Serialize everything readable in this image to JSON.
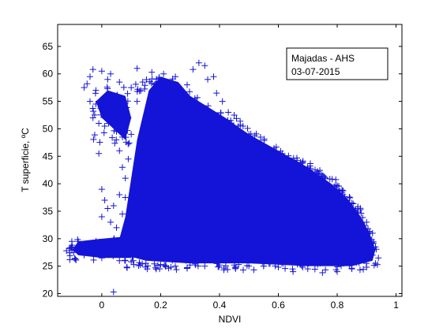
{
  "chart_data": {
    "type": "scatter",
    "marker": "+",
    "marker_color": "#1414d8",
    "xlabel": "NDVI",
    "ylabel": "T superficie, ºC",
    "xlim": [
      -0.15,
      1.02
    ],
    "ylim": [
      19.5,
      69
    ],
    "xticks": [
      0,
      0.2,
      0.4,
      0.6,
      0.8,
      1
    ],
    "xtick_labels": [
      "0",
      "0.2",
      "0.4",
      "0.6",
      "0.8",
      "1"
    ],
    "yticks": [
      20,
      25,
      30,
      35,
      40,
      45,
      50,
      55,
      60,
      65
    ],
    "ytick_labels": [
      "20",
      "25",
      "30",
      "35",
      "40",
      "45",
      "50",
      "55",
      "60",
      "65"
    ],
    "grid": false,
    "annotation": {
      "lines": [
        "Majadas - AHS",
        "03-07-2015"
      ],
      "placement": "top-right"
    },
    "series": [
      {
        "points": [
          [
            -0.06,
            57.5
          ],
          [
            -0.05,
            58.2
          ],
          [
            -0.04,
            59.5
          ],
          [
            -0.03,
            60.8
          ],
          [
            -0.02,
            57.0
          ],
          [
            0.0,
            60.5
          ],
          [
            0.02,
            59.0
          ],
          [
            0.03,
            60.0
          ],
          [
            0.06,
            58.5
          ],
          [
            0.1,
            57.5
          ],
          [
            -0.04,
            55.0
          ],
          [
            -0.03,
            52.0
          ],
          [
            -0.02,
            54.5
          ],
          [
            -0.01,
            51.0
          ],
          [
            0.0,
            53.5
          ],
          [
            0.01,
            50.5
          ],
          [
            0.02,
            52.5
          ],
          [
            0.03,
            55.5
          ],
          [
            0.04,
            53.0
          ],
          [
            0.05,
            49.5
          ],
          [
            0.06,
            51.5
          ],
          [
            0.07,
            48.5
          ],
          [
            0.08,
            50.0
          ],
          [
            0.09,
            52.0
          ],
          [
            0.1,
            49.0
          ],
          [
            -0.01,
            45.5
          ],
          [
            0.06,
            46.0
          ],
          [
            0.07,
            43.0
          ],
          [
            0.08,
            41.0
          ],
          [
            0.09,
            44.5
          ],
          [
            0.0,
            39.0
          ],
          [
            0.01,
            37.0
          ],
          [
            0.02,
            35.5
          ],
          [
            0.0,
            34.0
          ],
          [
            0.03,
            33.0
          ],
          [
            0.04,
            36.0
          ],
          [
            0.05,
            32.0
          ],
          [
            0.06,
            38.0
          ],
          [
            0.07,
            34.5
          ],
          [
            0.08,
            37.5
          ],
          [
            -0.12,
            27.8
          ],
          [
            -0.1,
            28.5
          ],
          [
            -0.08,
            29.5
          ],
          [
            -0.06,
            27.0
          ],
          [
            -0.04,
            28.2
          ],
          [
            -0.02,
            29.0
          ],
          [
            0.0,
            26.5
          ],
          [
            0.02,
            27.5
          ],
          [
            0.04,
            29.8
          ],
          [
            0.06,
            26.0
          ],
          [
            -0.09,
            26.3
          ],
          [
            0.04,
            20.3
          ],
          [
            0.12,
            61.0
          ],
          [
            0.17,
            60.3
          ],
          [
            0.21,
            60.0
          ],
          [
            0.25,
            59.5
          ],
          [
            0.29,
            58.0
          ],
          [
            0.31,
            60.8
          ],
          [
            0.33,
            62.0
          ],
          [
            0.35,
            61.5
          ],
          [
            0.36,
            59.0
          ],
          [
            0.38,
            59.5
          ],
          [
            0.39,
            56.5
          ],
          [
            0.41,
            55.0
          ],
          [
            0.43,
            53.0
          ],
          [
            0.45,
            52.5
          ],
          [
            0.48,
            50.5
          ],
          [
            0.5,
            49.0
          ],
          [
            0.53,
            47.5
          ],
          [
            0.56,
            46.5
          ],
          [
            0.6,
            45.0
          ],
          [
            0.63,
            44.0
          ],
          [
            0.66,
            43.5
          ],
          [
            0.7,
            43.0
          ],
          [
            0.73,
            42.0
          ],
          [
            0.76,
            41.0
          ],
          [
            0.79,
            39.5
          ],
          [
            0.82,
            38.0
          ],
          [
            0.85,
            36.5
          ],
          [
            0.87,
            35.5
          ],
          [
            0.9,
            33.0
          ],
          [
            0.92,
            31.0
          ],
          [
            0.93,
            28.5
          ],
          [
            0.94,
            26.5
          ],
          [
            0.93,
            25.5
          ],
          [
            0.9,
            24.8
          ],
          [
            0.85,
            24.5
          ],
          [
            0.8,
            24.0
          ],
          [
            0.75,
            23.8
          ],
          [
            0.7,
            24.5
          ],
          [
            0.65,
            24.0
          ],
          [
            0.6,
            24.8
          ],
          [
            0.55,
            25.0
          ],
          [
            0.5,
            25.0
          ],
          [
            0.45,
            25.2
          ],
          [
            0.4,
            25.2
          ],
          [
            0.35,
            25.0
          ],
          [
            0.3,
            25.2
          ],
          [
            0.25,
            25.0
          ],
          [
            0.2,
            25.3
          ],
          [
            0.15,
            25.5
          ],
          [
            0.1,
            25.8
          ],
          [
            0.08,
            26.0
          ],
          [
            0.12,
            55.0
          ],
          [
            0.14,
            50.0
          ],
          [
            0.16,
            45.0
          ],
          [
            0.18,
            42.0
          ],
          [
            0.2,
            38.0
          ],
          [
            0.22,
            35.0
          ],
          [
            0.25,
            33.0
          ],
          [
            0.28,
            30.0
          ],
          [
            0.3,
            28.0
          ],
          [
            0.35,
            27.0
          ],
          [
            0.4,
            28.5
          ],
          [
            0.45,
            30.0
          ],
          [
            0.5,
            31.0
          ],
          [
            0.55,
            32.0
          ],
          [
            0.6,
            30.0
          ],
          [
            0.65,
            29.0
          ],
          [
            0.7,
            30.5
          ],
          [
            0.75,
            28.5
          ],
          [
            0.8,
            29.5
          ],
          [
            0.85,
            28.0
          ],
          [
            0.88,
            27.0
          ],
          [
            0.2,
            57.0
          ],
          [
            0.22,
            55.0
          ],
          [
            0.24,
            53.0
          ],
          [
            0.26,
            50.0
          ],
          [
            0.28,
            48.0
          ],
          [
            0.3,
            46.0
          ],
          [
            0.32,
            44.0
          ],
          [
            0.34,
            42.0
          ],
          [
            0.36,
            40.0
          ],
          [
            0.38,
            38.0
          ],
          [
            0.4,
            36.0
          ],
          [
            0.42,
            34.0
          ],
          [
            0.44,
            32.5
          ],
          [
            0.46,
            40.0
          ],
          [
            0.48,
            42.0
          ],
          [
            0.5,
            44.0
          ],
          [
            0.52,
            41.0
          ],
          [
            0.54,
            38.0
          ],
          [
            0.56,
            36.0
          ],
          [
            0.58,
            34.0
          ],
          [
            0.6,
            40.0
          ],
          [
            0.62,
            38.5
          ],
          [
            0.64,
            36.5
          ],
          [
            0.66,
            34.5
          ],
          [
            0.68,
            32.5
          ],
          [
            0.72,
            36.0
          ],
          [
            0.74,
            34.0
          ],
          [
            0.76,
            32.0
          ],
          [
            0.78,
            35.0
          ],
          [
            0.82,
            31.0
          ],
          [
            0.84,
            33.0
          ],
          [
            0.86,
            30.5
          ],
          [
            0.88,
            29.0
          ],
          [
            0.9,
            28.0
          ],
          [
            0.92,
            27.0
          ],
          [
            0.15,
            35.0
          ],
          [
            0.13,
            40.0
          ],
          [
            0.12,
            30.0
          ],
          [
            0.1,
            28.0
          ],
          [
            0.18,
            27.0
          ],
          [
            0.23,
            29.5
          ],
          [
            0.27,
            31.5
          ],
          [
            0.33,
            33.5
          ],
          [
            0.37,
            31.0
          ],
          [
            0.43,
            27.5
          ],
          [
            0.47,
            29.0
          ]
        ]
      }
    ]
  }
}
